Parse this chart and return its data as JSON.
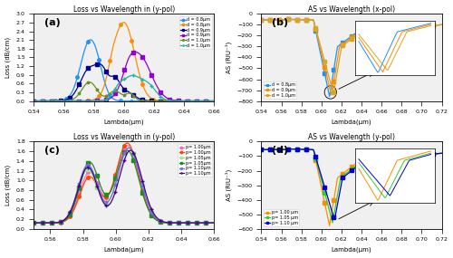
{
  "title_a": "Loss vs Wavelength in (y-pol)",
  "title_b": "AS vs Wavelength (x-pol)",
  "title_c": "Loss vs Wavelength in (y-pol)",
  "title_d": "AS vs Wavelength (y-pol)",
  "xlabel": "Lambda(μm)",
  "ylabel_loss": "Loss (dB/cm)",
  "ylabel_as": "AS (RIU⁻¹)",
  "panel_a_legend": [
    "d = 0.8μm",
    "d = 0.8μm",
    "d = 0.9μm",
    "d = 0.9μm",
    "d = 1.0μm",
    "d = 1.0μm"
  ],
  "panel_b_legend": [
    "d = 0.8μm",
    "d = 0.9μm",
    "d = 1.0μm"
  ],
  "panel_c_legend": [
    "p= 1.00μm",
    "p= 1.00μm",
    "p= 1.05μm",
    "p= 1.05μm",
    "p= 1.10μm",
    "p= 1.10μm"
  ],
  "panel_d_legend": [
    "p= 1.00 μm",
    "p= 1.05 μm",
    "p= 1.10 μm"
  ],
  "colors_a": [
    "#1E90FF",
    "#FF8C00",
    "#00008B",
    "#9400D3",
    "#6B8E23",
    "#20B2AA"
  ],
  "colors_b": [
    "#1E90FF",
    "#FF8C00",
    "#DAA520"
  ],
  "colors_c": [
    "#FF69B4",
    "#FF4500",
    "#90EE90",
    "#228B22",
    "#7B68EE",
    "#4B0082"
  ],
  "colors_d": [
    "#FF8C00",
    "#32CD32",
    "#0000CD"
  ],
  "bg_color": "#f0f0f0"
}
